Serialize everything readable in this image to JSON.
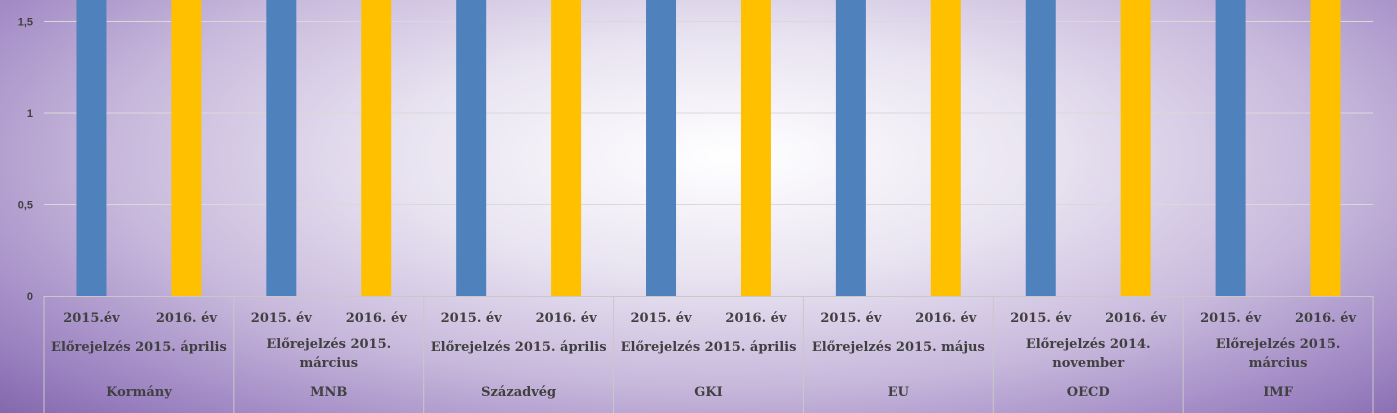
{
  "chart_data": {
    "type": "bar",
    "ylim": [
      0,
      1.5
    ],
    "yticks": [
      "0",
      "0,5",
      "1",
      "1,5"
    ],
    "groups": [
      {
        "org": "Kormány",
        "forecast": [
          "Előrejelzés 2015. április"
        ],
        "years": [
          "2015.év",
          "2016. év"
        ]
      },
      {
        "org": "MNB",
        "forecast": [
          "Előrejelzés 2015.",
          "március"
        ],
        "years": [
          "2015. év",
          "2016. év"
        ]
      },
      {
        "org": "Századvég",
        "forecast": [
          "Előrejelzés 2015. április"
        ],
        "years": [
          "2015. év",
          "2016. év"
        ]
      },
      {
        "org": "GKI",
        "forecast": [
          "Előrejelzés 2015. április"
        ],
        "years": [
          "2015. év",
          "2016. év"
        ]
      },
      {
        "org": "EU",
        "forecast": [
          "Előrejelzés 2015. május"
        ],
        "years": [
          "2015. év",
          "2016. év"
        ]
      },
      {
        "org": "OECD",
        "forecast": [
          "Előrejelzés 2014.",
          "november"
        ],
        "years": [
          "2015. év",
          "2016. év"
        ]
      },
      {
        "org": "IMF",
        "forecast": [
          "Előrejelzés 2015.",
          "március"
        ],
        "years": [
          "2015. év",
          "2016. év"
        ]
      }
    ],
    "series_colors": [
      "#4f81bd",
      "#ffc000"
    ],
    "values": [
      [
        1.7,
        1.7
      ],
      [
        1.7,
        1.7
      ],
      [
        1.7,
        1.7
      ],
      [
        1.7,
        1.7
      ],
      [
        1.7,
        1.7
      ],
      [
        1.7,
        1.7
      ],
      [
        1.7,
        1.7
      ]
    ],
    "grid": true
  }
}
